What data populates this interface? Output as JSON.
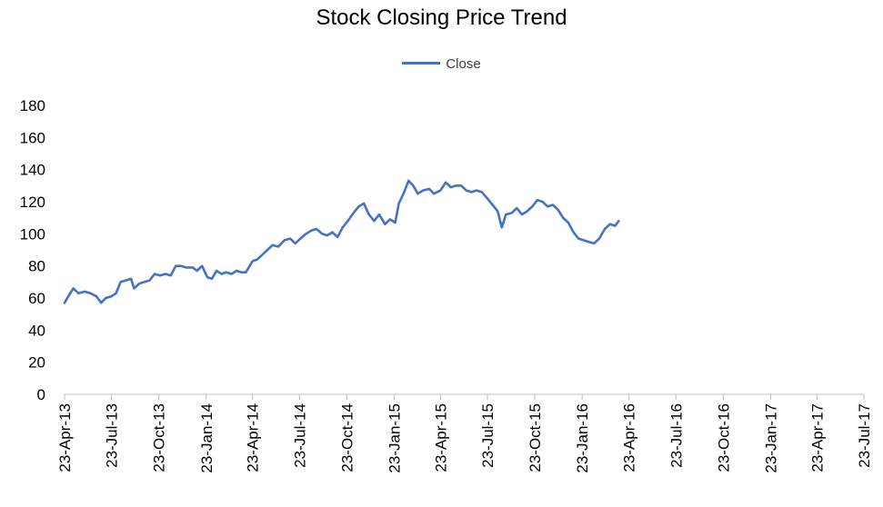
{
  "chart_data": {
    "type": "line",
    "title": "Stock Closing Price Trend",
    "xlabel": "",
    "ylabel": "",
    "ylim": [
      0,
      180
    ],
    "yticks": [
      0,
      20,
      40,
      60,
      80,
      100,
      120,
      140,
      160,
      180
    ],
    "xticks": [
      "23-Apr-13",
      "23-Jul-13",
      "23-Oct-13",
      "23-Jan-14",
      "23-Apr-14",
      "23-Jul-14",
      "23-Oct-14",
      "23-Jan-15",
      "23-Apr-15",
      "23-Jul-15",
      "23-Oct-15",
      "23-Jan-16",
      "23-Apr-16",
      "23-Jul-16",
      "23-Oct-16",
      "23-Jan-17",
      "23-Apr-17",
      "23-Jul-17"
    ],
    "xlim": [
      "2013-04-23",
      "2017-07-23"
    ],
    "grid": false,
    "legend_position": "top",
    "series": [
      {
        "name": "Close",
        "color": "#4472c4",
        "points": [
          [
            "2013-04-23",
            57
          ],
          [
            "2013-05-02",
            62
          ],
          [
            "2013-05-10",
            66
          ],
          [
            "2013-05-20",
            63
          ],
          [
            "2013-06-01",
            64
          ],
          [
            "2013-06-12",
            63
          ],
          [
            "2013-06-24",
            61
          ],
          [
            "2013-07-03",
            57
          ],
          [
            "2013-07-12",
            60
          ],
          [
            "2013-07-23",
            61
          ],
          [
            "2013-08-01",
            63
          ],
          [
            "2013-08-10",
            70
          ],
          [
            "2013-08-20",
            71
          ],
          [
            "2013-08-30",
            72
          ],
          [
            "2013-09-05",
            66
          ],
          [
            "2013-09-15",
            69
          ],
          [
            "2013-09-25",
            70
          ],
          [
            "2013-10-05",
            71
          ],
          [
            "2013-10-15",
            75
          ],
          [
            "2013-10-25",
            74
          ],
          [
            "2013-11-05",
            75
          ],
          [
            "2013-11-15",
            74
          ],
          [
            "2013-11-25",
            80
          ],
          [
            "2013-12-05",
            80
          ],
          [
            "2013-12-15",
            79
          ],
          [
            "2013-12-28",
            79
          ],
          [
            "2014-01-05",
            77
          ],
          [
            "2014-01-15",
            80
          ],
          [
            "2014-01-25",
            73
          ],
          [
            "2014-02-03",
            72
          ],
          [
            "2014-02-12",
            77
          ],
          [
            "2014-02-22",
            75
          ],
          [
            "2014-03-03",
            76
          ],
          [
            "2014-03-13",
            75
          ],
          [
            "2014-03-23",
            77
          ],
          [
            "2014-04-01",
            76
          ],
          [
            "2014-04-10",
            76
          ],
          [
            "2014-04-23",
            83
          ],
          [
            "2014-05-02",
            84
          ],
          [
            "2014-05-12",
            87
          ],
          [
            "2014-05-22",
            90
          ],
          [
            "2014-06-01",
            93
          ],
          [
            "2014-06-12",
            92
          ],
          [
            "2014-06-24",
            96
          ],
          [
            "2014-07-05",
            97
          ],
          [
            "2014-07-15",
            94
          ],
          [
            "2014-07-25",
            97
          ],
          [
            "2014-08-05",
            100
          ],
          [
            "2014-08-15",
            102
          ],
          [
            "2014-08-25",
            103
          ],
          [
            "2014-09-05",
            100
          ],
          [
            "2014-09-15",
            99
          ],
          [
            "2014-09-25",
            101
          ],
          [
            "2014-10-05",
            98
          ],
          [
            "2014-10-15",
            104
          ],
          [
            "2014-10-25",
            108
          ],
          [
            "2014-11-05",
            113
          ],
          [
            "2014-11-15",
            117
          ],
          [
            "2014-11-25",
            119
          ],
          [
            "2014-12-05",
            112
          ],
          [
            "2014-12-15",
            108
          ],
          [
            "2014-12-25",
            112
          ],
          [
            "2015-01-05",
            106
          ],
          [
            "2015-01-15",
            109
          ],
          [
            "2015-01-25",
            107
          ],
          [
            "2015-02-01",
            119
          ],
          [
            "2015-02-10",
            125
          ],
          [
            "2015-02-20",
            133
          ],
          [
            "2015-03-01",
            130
          ],
          [
            "2015-03-10",
            125
          ],
          [
            "2015-03-20",
            127
          ],
          [
            "2015-04-01",
            128
          ],
          [
            "2015-04-10",
            125
          ],
          [
            "2015-04-23",
            127
          ],
          [
            "2015-05-03",
            132
          ],
          [
            "2015-05-13",
            129
          ],
          [
            "2015-05-23",
            130
          ],
          [
            "2015-06-02",
            130
          ],
          [
            "2015-06-12",
            127
          ],
          [
            "2015-06-22",
            126
          ],
          [
            "2015-07-02",
            127
          ],
          [
            "2015-07-12",
            126
          ],
          [
            "2015-07-23",
            122
          ],
          [
            "2015-08-02",
            118
          ],
          [
            "2015-08-12",
            114
          ],
          [
            "2015-08-20",
            104
          ],
          [
            "2015-08-28",
            112
          ],
          [
            "2015-09-08",
            113
          ],
          [
            "2015-09-18",
            116
          ],
          [
            "2015-09-28",
            112
          ],
          [
            "2015-10-08",
            114
          ],
          [
            "2015-10-18",
            117
          ],
          [
            "2015-10-28",
            121
          ],
          [
            "2015-11-07",
            120
          ],
          [
            "2015-11-17",
            117
          ],
          [
            "2015-11-27",
            118
          ],
          [
            "2015-12-07",
            115
          ],
          [
            "2015-12-17",
            110
          ],
          [
            "2015-12-27",
            107
          ],
          [
            "2016-01-06",
            101
          ],
          [
            "2016-01-16",
            97
          ],
          [
            "2016-01-26",
            96
          ],
          [
            "2016-02-05",
            95
          ],
          [
            "2016-02-15",
            94
          ],
          [
            "2016-02-25",
            97
          ],
          [
            "2016-03-07",
            103
          ],
          [
            "2016-03-17",
            106
          ],
          [
            "2016-03-27",
            105
          ],
          [
            "2016-04-03",
            108
          ]
        ]
      }
    ]
  }
}
